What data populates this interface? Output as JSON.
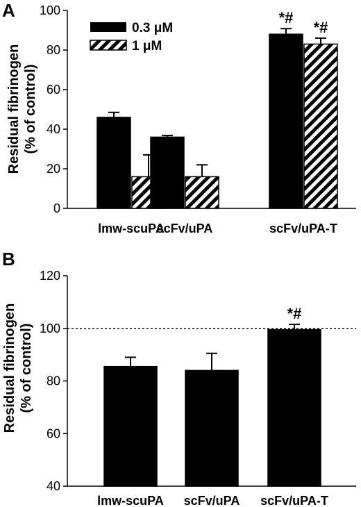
{
  "chart_data": [
    {
      "panel": "A",
      "type": "bar",
      "ylabel_line1": "Residual fibrinogen",
      "ylabel_line2": "(% of control)",
      "ylim": [
        0,
        100
      ],
      "yticks": [
        0,
        20,
        40,
        60,
        80,
        100
      ],
      "categories": [
        "lmw-scuPA",
        "scFv/uPA",
        "scFv/uPA-T"
      ],
      "series": [
        {
          "name": "0.3 μM",
          "style": "solid",
          "color": "#000000",
          "values": [
            46,
            36,
            88
          ],
          "errors": [
            2.5,
            0.8,
            2.8
          ]
        },
        {
          "name": "1 μM",
          "style": "hatched",
          "color": "#000000",
          "values": [
            16,
            16,
            83
          ],
          "errors": [
            11,
            6,
            3
          ]
        }
      ],
      "annotations": [
        "*#",
        "*#",
        "",
        "",
        "",
        ""
      ],
      "legend_position": "top-left",
      "grid": false
    },
    {
      "panel": "B",
      "type": "bar",
      "ylabel_line1": "Residual fibrinogen",
      "ylabel_line2": "(% of control)",
      "ylim": [
        40,
        120
      ],
      "yticks": [
        40,
        60,
        80,
        100,
        120
      ],
      "categories": [
        "lmw-scuPA",
        "scFv/uPA",
        "scFv/uPA-T"
      ],
      "series": [
        {
          "name": "",
          "style": "solid",
          "color": "#000000",
          "values": [
            85.5,
            84,
            99.5
          ],
          "errors": [
            3.5,
            6.5,
            2
          ]
        }
      ],
      "annotations": [
        "",
        "",
        "*#"
      ],
      "reference_line": 100,
      "grid": false
    }
  ]
}
